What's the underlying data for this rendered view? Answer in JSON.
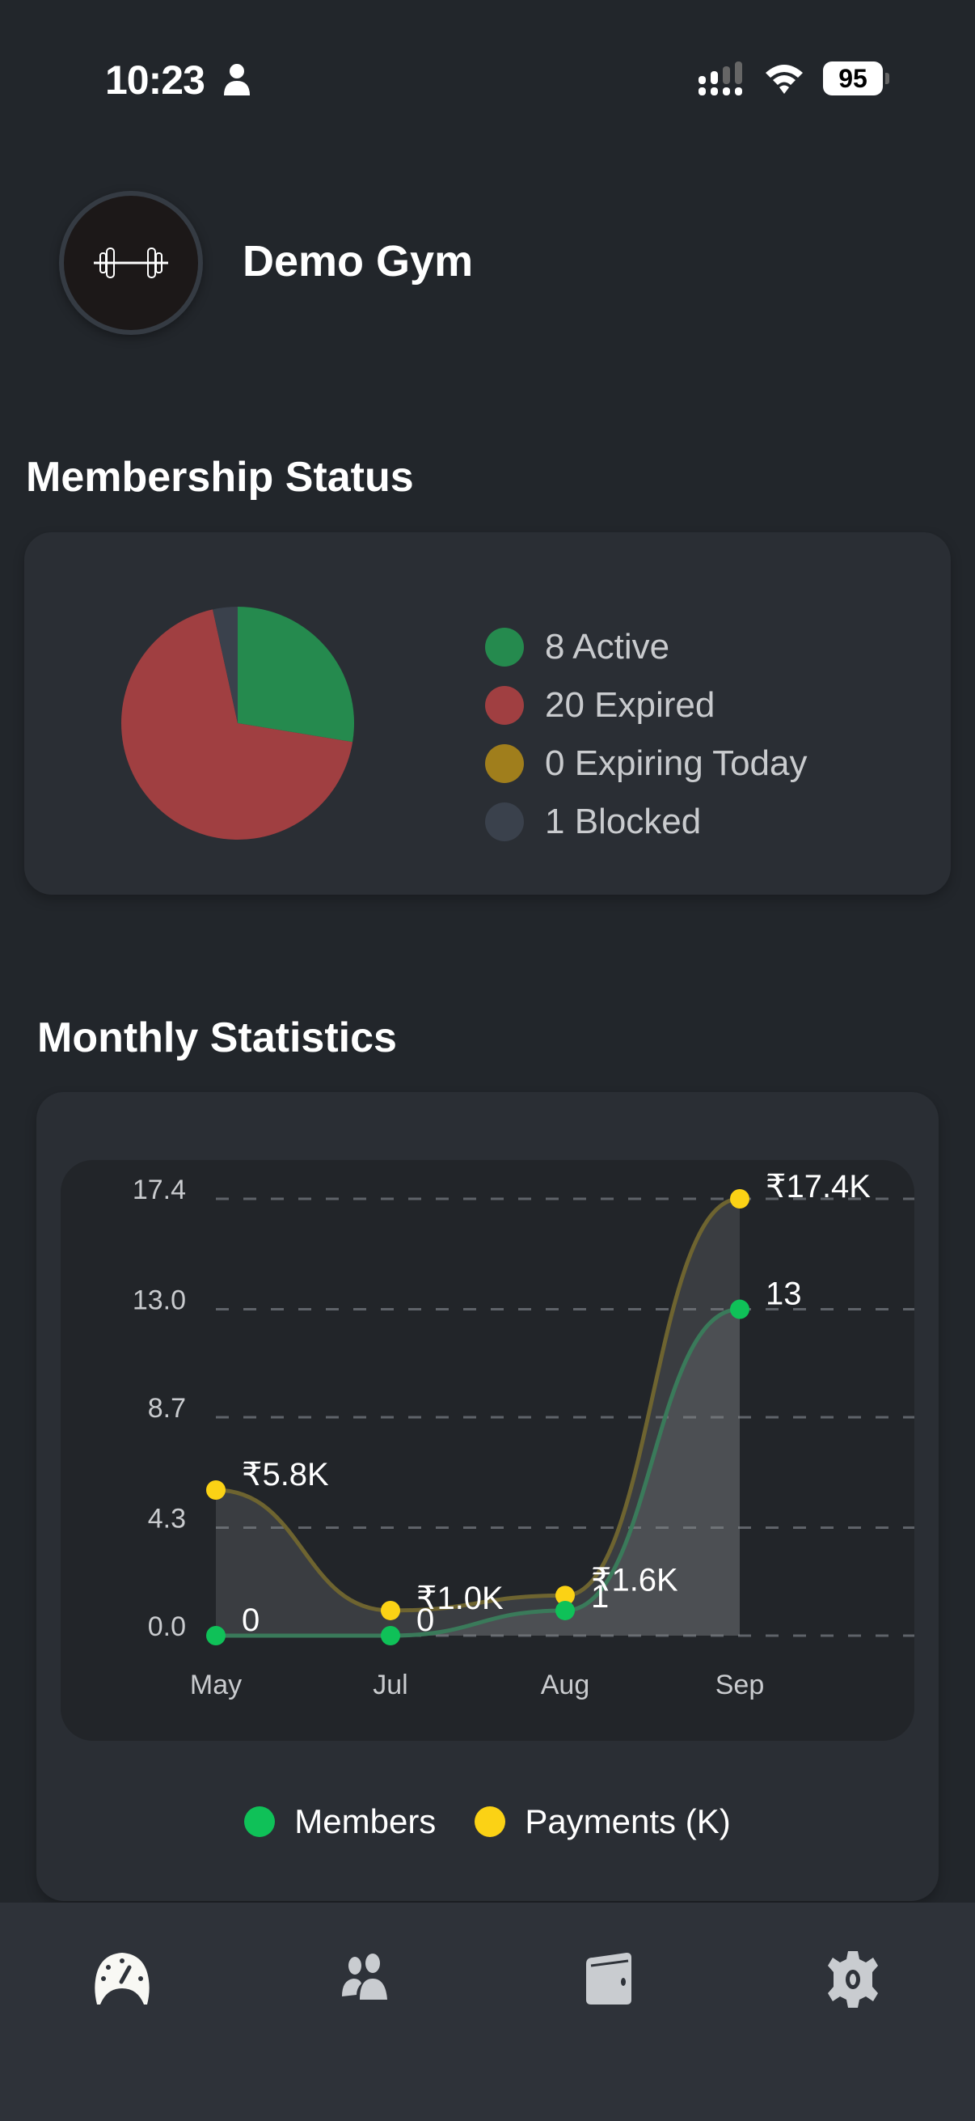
{
  "status_bar": {
    "time": "10:23",
    "battery": "95",
    "icons": [
      "person-icon",
      "cellular-signal-icon",
      "wifi-icon",
      "battery-icon"
    ]
  },
  "header": {
    "gym_name": "Demo Gym",
    "logo_icon": "barbell-icon"
  },
  "membership": {
    "title": "Membership Status",
    "items": [
      {
        "label": "8 Active",
        "value": 8,
        "color": "#258a4e"
      },
      {
        "label": "20 Expired",
        "value": 20,
        "color": "#a03f41"
      },
      {
        "label": "0 Expiring Today",
        "value": 0,
        "color": "#a07e1c"
      },
      {
        "label": "1 Blocked",
        "value": 1,
        "color": "#3a414c"
      }
    ]
  },
  "monthly": {
    "title": "Monthly Statistics",
    "legend": [
      {
        "label": "Members",
        "color": "#0fc158"
      },
      {
        "label": "Payments (K)",
        "color": "#fbd215"
      }
    ]
  },
  "chart_data": [
    {
      "type": "pie",
      "title": "Membership Status",
      "categories": [
        "Active",
        "Expired",
        "Expiring Today",
        "Blocked"
      ],
      "values": [
        8,
        20,
        0,
        1
      ],
      "colors": [
        "#258a4e",
        "#a03f41",
        "#a07e1c",
        "#3a414c"
      ],
      "legend": "right"
    },
    {
      "type": "line",
      "title": "Monthly Statistics",
      "categories": [
        "May",
        "Jul",
        "Aug",
        "Sep"
      ],
      "yticks": [
        "0.0",
        "4.3",
        "8.7",
        "13.0",
        "17.4"
      ],
      "ylim": [
        0,
        17.4
      ],
      "grid": true,
      "legend": "bottom",
      "series": [
        {
          "name": "Members",
          "values": [
            0,
            0,
            1,
            13
          ],
          "labels": [
            "0",
            "0",
            "1",
            "13"
          ],
          "color": "#0fc158"
        },
        {
          "name": "Payments (K)",
          "values": [
            5.8,
            1.0,
            1.6,
            17.4
          ],
          "labels": [
            "₹5.8K",
            "₹1.0K",
            "₹1.6K",
            "₹17.4K"
          ],
          "color": "#fbd215"
        }
      ]
    }
  ],
  "tab_bar": {
    "tabs": [
      {
        "name": "dashboard",
        "icon": "speedometer-icon",
        "active": true
      },
      {
        "name": "members",
        "icon": "people-icon",
        "active": false
      },
      {
        "name": "payments",
        "icon": "wallet-icon",
        "active": false
      },
      {
        "name": "settings",
        "icon": "gear-icon",
        "active": false
      }
    ]
  }
}
